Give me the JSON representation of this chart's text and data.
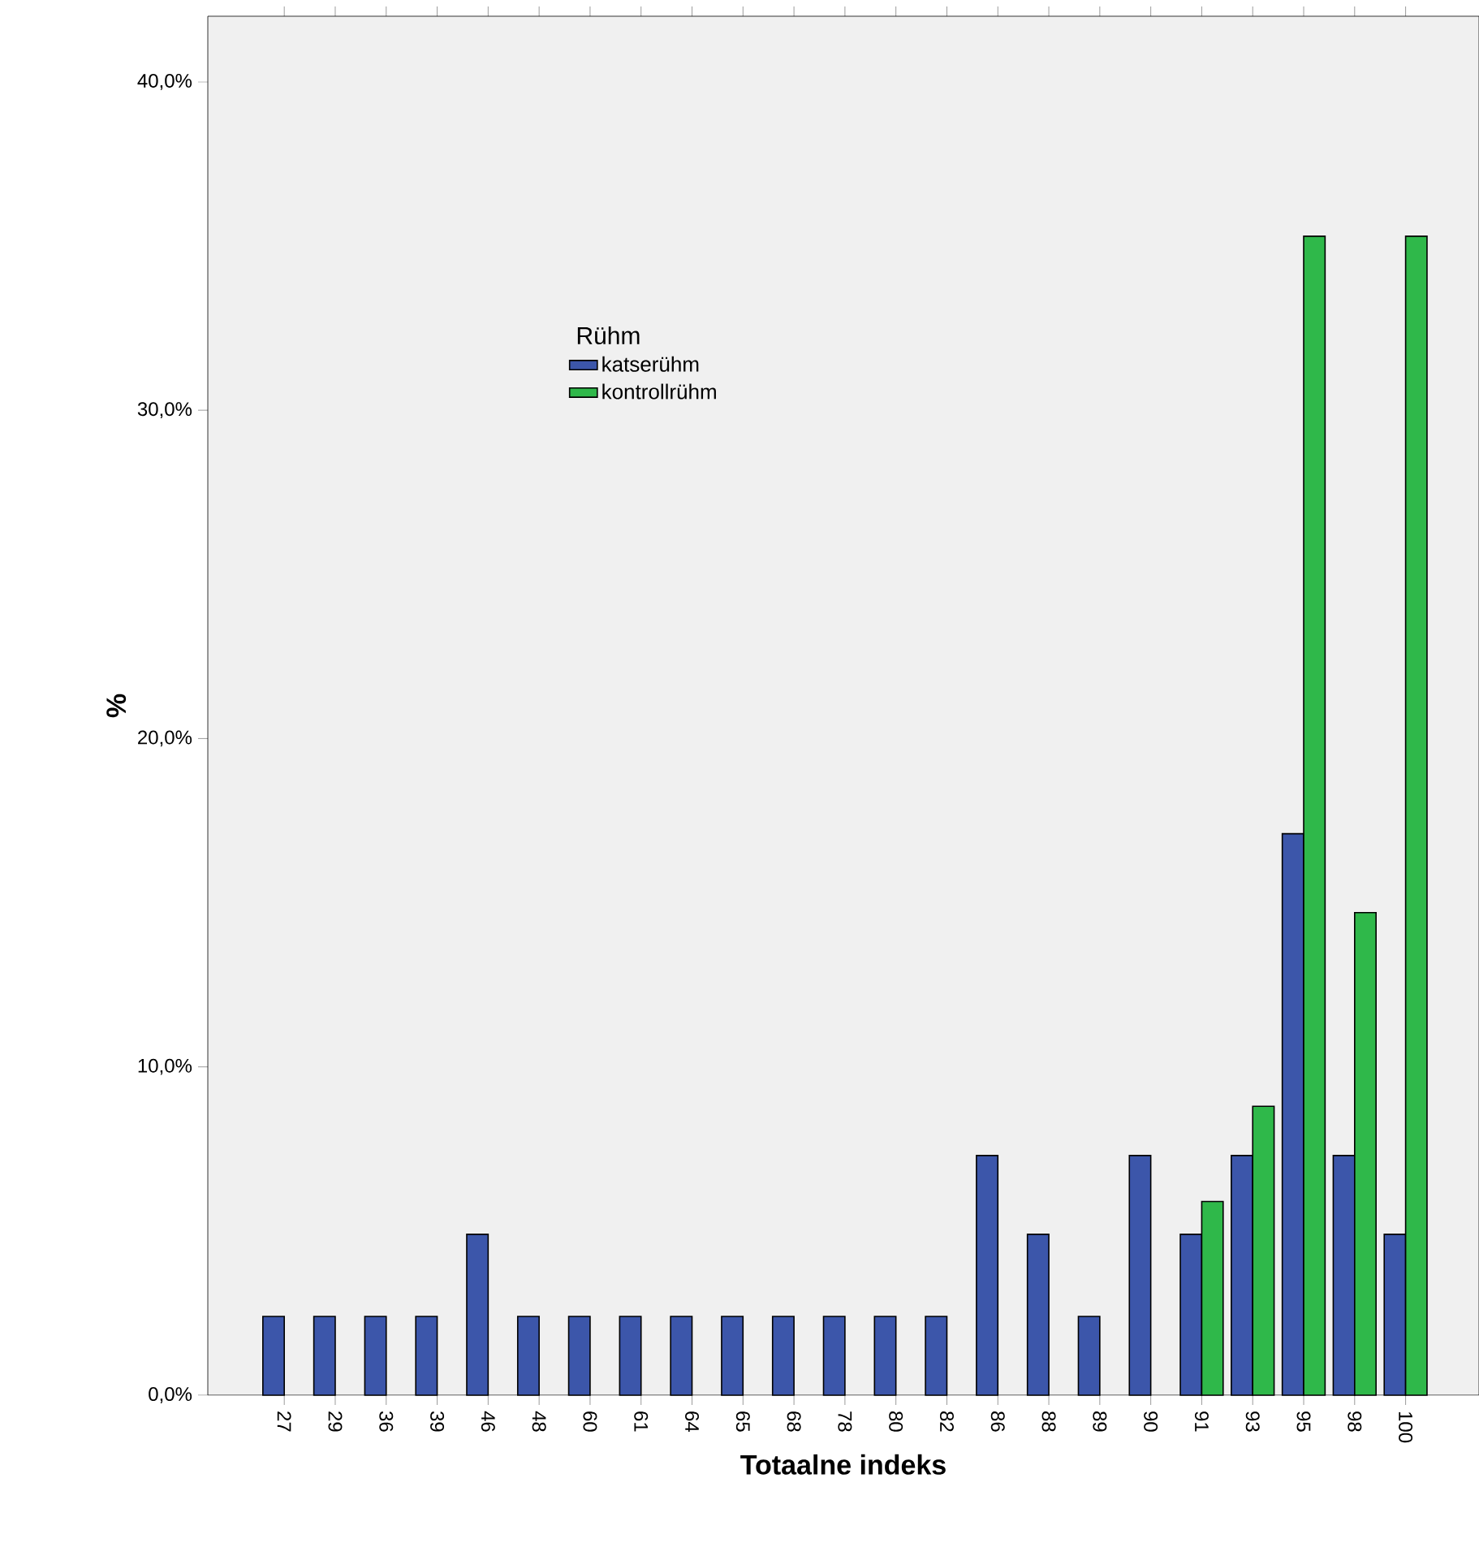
{
  "chart_data": {
    "type": "bar",
    "xlabel": "Totaalne indeks",
    "ylabel": "%",
    "legend_title": "Rühm",
    "categories": [
      "27",
      "29",
      "36",
      "39",
      "46",
      "48",
      "60",
      "61",
      "64",
      "65",
      "68",
      "78",
      "80",
      "82",
      "86",
      "88",
      "89",
      "90",
      "91",
      "93",
      "95",
      "98",
      "100"
    ],
    "series": [
      {
        "name": "katserühm",
        "color": "#3c56aa",
        "values": [
          2.4,
          2.4,
          2.4,
          2.4,
          4.9,
          2.4,
          2.4,
          2.4,
          2.4,
          2.4,
          2.4,
          2.4,
          2.4,
          2.4,
          7.3,
          4.9,
          2.4,
          7.3,
          4.9,
          7.3,
          17.1,
          7.3,
          4.9
        ]
      },
      {
        "name": "kontrollrühm",
        "color": "#2fb84a",
        "values": [
          null,
          null,
          null,
          null,
          null,
          null,
          null,
          null,
          null,
          null,
          null,
          null,
          null,
          null,
          null,
          null,
          null,
          null,
          5.9,
          8.8,
          35.3,
          14.7,
          35.3
        ]
      }
    ],
    "ylim": [
      0,
      42
    ],
    "yticks": [
      {
        "value": 0,
        "label": "0,0%"
      },
      {
        "value": 10,
        "label": "10,0%"
      },
      {
        "value": 20,
        "label": "20,0%"
      },
      {
        "value": 30,
        "label": "30,0%"
      },
      {
        "value": 40,
        "label": "40,0%"
      }
    ],
    "legend": "top left"
  }
}
